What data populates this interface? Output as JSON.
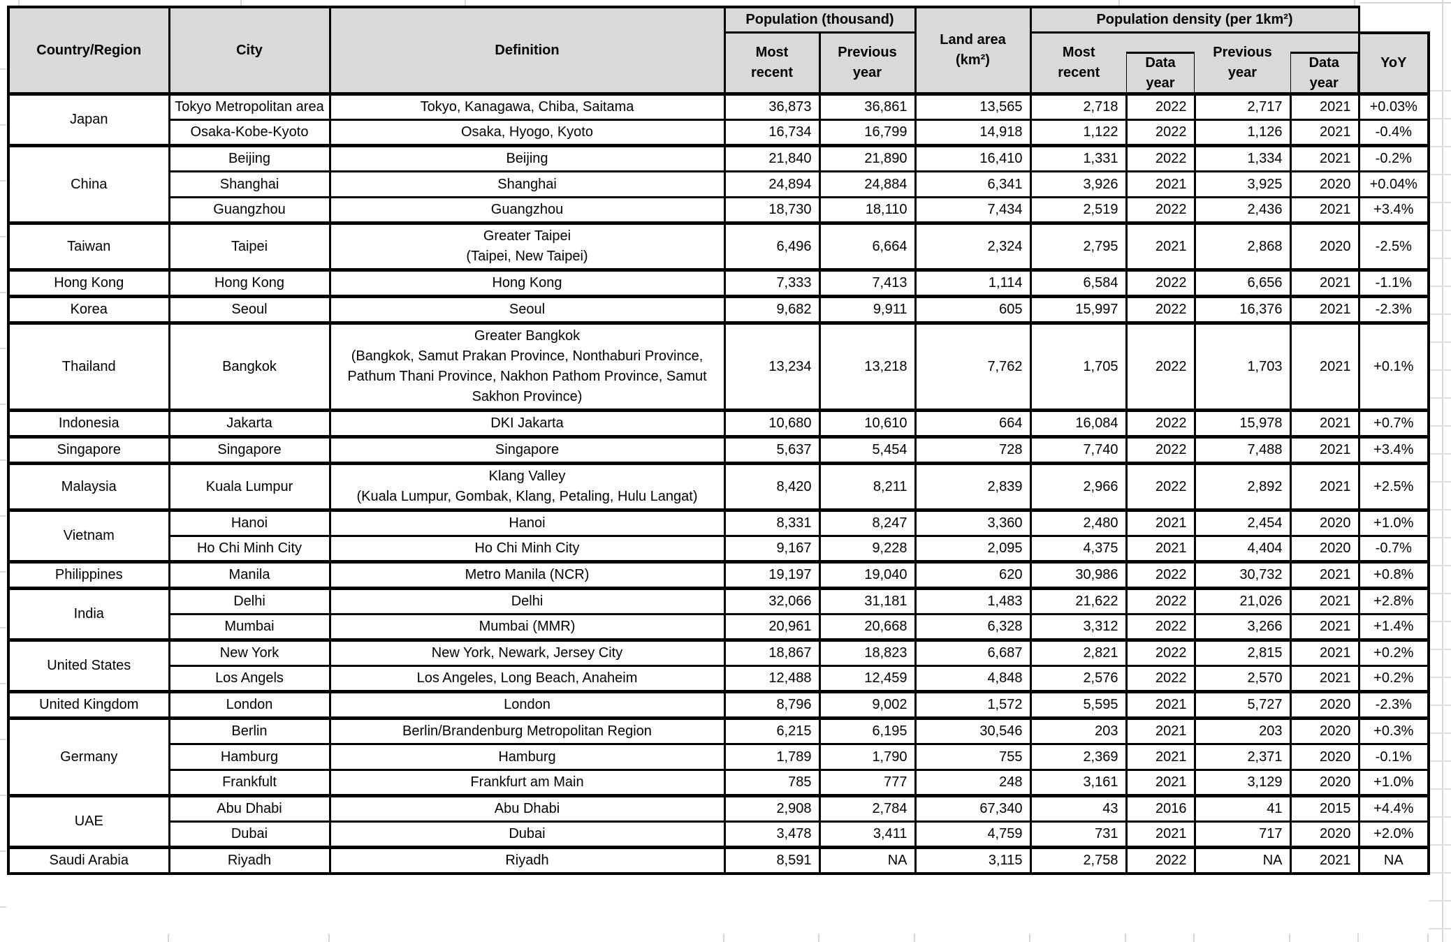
{
  "header": {
    "country": "Country/Region",
    "city": "City",
    "definition": "Definition",
    "population_group": "Population (thousand)",
    "pop_most_recent": "Most\nrecent",
    "pop_previous_year": "Previous\nyear",
    "land_area": "Land area\n(km²)",
    "density_group": "Population density (per 1km²)",
    "den_most_recent": "Most\nrecent",
    "den_data_year_1": "Data\nyear",
    "den_previous_year": "Previous\nyear",
    "den_data_year_2": "Data\nyear",
    "yoy": "YoY"
  },
  "colors": {
    "header_bg": "#d9d9d9",
    "border": "#000000",
    "gridline": "#dcdcdc",
    "cell_bg": "#ffffff"
  },
  "table": {
    "groups": [
      {
        "country": "Japan",
        "cities": [
          {
            "city": "Tokyo Metropolitan area",
            "definition": "Tokyo, Kanagawa, Chiba, Saitama",
            "pop_recent": "36,873",
            "pop_prev": "36,861",
            "land_area": "13,565",
            "den_recent": "2,718",
            "den_recent_year": "2022",
            "den_prev": "2,717",
            "den_prev_year": "2021",
            "yoy": "+0.03%"
          },
          {
            "city": "Osaka-Kobe-Kyoto",
            "definition": "Osaka, Hyogo, Kyoto",
            "pop_recent": "16,734",
            "pop_prev": "16,799",
            "land_area": "14,918",
            "den_recent": "1,122",
            "den_recent_year": "2022",
            "den_prev": "1,126",
            "den_prev_year": "2021",
            "yoy": "-0.4%"
          }
        ]
      },
      {
        "country": "China",
        "cities": [
          {
            "city": "Beijing",
            "definition": "Beijing",
            "pop_recent": "21,840",
            "pop_prev": "21,890",
            "land_area": "16,410",
            "den_recent": "1,331",
            "den_recent_year": "2022",
            "den_prev": "1,334",
            "den_prev_year": "2021",
            "yoy": "-0.2%"
          },
          {
            "city": "Shanghai",
            "definition": "Shanghai",
            "pop_recent": "24,894",
            "pop_prev": "24,884",
            "land_area": "6,341",
            "den_recent": "3,926",
            "den_recent_year": "2021",
            "den_prev": "3,925",
            "den_prev_year": "2020",
            "yoy": "+0.04%"
          },
          {
            "city": "Guangzhou",
            "definition": "Guangzhou",
            "pop_recent": "18,730",
            "pop_prev": "18,110",
            "land_area": "7,434",
            "den_recent": "2,519",
            "den_recent_year": "2022",
            "den_prev": "2,436",
            "den_prev_year": "2021",
            "yoy": "+3.4%"
          }
        ]
      },
      {
        "country": "Taiwan",
        "cities": [
          {
            "city": "Taipei",
            "definition": "Greater Taipei\n(Taipei, New Taipei)",
            "pop_recent": "6,496",
            "pop_prev": "6,664",
            "land_area": "2,324",
            "den_recent": "2,795",
            "den_recent_year": "2021",
            "den_prev": "2,868",
            "den_prev_year": "2020",
            "yoy": "-2.5%"
          }
        ]
      },
      {
        "country": "Hong Kong",
        "cities": [
          {
            "city": "Hong Kong",
            "definition": "Hong Kong",
            "pop_recent": "7,333",
            "pop_prev": "7,413",
            "land_area": "1,114",
            "den_recent": "6,584",
            "den_recent_year": "2022",
            "den_prev": "6,656",
            "den_prev_year": "2021",
            "yoy": "-1.1%"
          }
        ]
      },
      {
        "country": "Korea",
        "cities": [
          {
            "city": "Seoul",
            "definition": "Seoul",
            "pop_recent": "9,682",
            "pop_prev": "9,911",
            "land_area": "605",
            "den_recent": "15,997",
            "den_recent_year": "2022",
            "den_prev": "16,376",
            "den_prev_year": "2021",
            "yoy": "-2.3%"
          }
        ]
      },
      {
        "country": "Thailand",
        "cities": [
          {
            "city": "Bangkok",
            "definition": "Greater Bangkok\n(Bangkok, Samut Prakan Province, Nonthaburi Province, Pathum Thani Province, Nakhon Pathom Province, Samut Sakhon Province)",
            "pop_recent": "13,234",
            "pop_prev": "13,218",
            "land_area": "7,762",
            "den_recent": "1,705",
            "den_recent_year": "2022",
            "den_prev": "1,703",
            "den_prev_year": "2021",
            "yoy": "+0.1%"
          }
        ]
      },
      {
        "country": "Indonesia",
        "cities": [
          {
            "city": "Jakarta",
            "definition": "DKI Jakarta",
            "pop_recent": "10,680",
            "pop_prev": "10,610",
            "land_area": "664",
            "den_recent": "16,084",
            "den_recent_year": "2022",
            "den_prev": "15,978",
            "den_prev_year": "2021",
            "yoy": "+0.7%"
          }
        ]
      },
      {
        "country": "Singapore",
        "cities": [
          {
            "city": "Singapore",
            "definition": "Singapore",
            "pop_recent": "5,637",
            "pop_prev": "5,454",
            "land_area": "728",
            "den_recent": "7,740",
            "den_recent_year": "2022",
            "den_prev": "7,488",
            "den_prev_year": "2021",
            "yoy": "+3.4%"
          }
        ]
      },
      {
        "country": "Malaysia",
        "cities": [
          {
            "city": "Kuala Lumpur",
            "definition": "Klang Valley\n(Kuala Lumpur, Gombak, Klang, Petaling, Hulu Langat)",
            "pop_recent": "8,420",
            "pop_prev": "8,211",
            "land_area": "2,839",
            "den_recent": "2,966",
            "den_recent_year": "2022",
            "den_prev": "2,892",
            "den_prev_year": "2021",
            "yoy": "+2.5%"
          }
        ]
      },
      {
        "country": "Vietnam",
        "cities": [
          {
            "city": "Hanoi",
            "definition": "Hanoi",
            "pop_recent": "8,331",
            "pop_prev": "8,247",
            "land_area": "3,360",
            "den_recent": "2,480",
            "den_recent_year": "2021",
            "den_prev": "2,454",
            "den_prev_year": "2020",
            "yoy": "+1.0%"
          },
          {
            "city": "Ho Chi Minh City",
            "definition": "Ho Chi Minh City",
            "pop_recent": "9,167",
            "pop_prev": "9,228",
            "land_area": "2,095",
            "den_recent": "4,375",
            "den_recent_year": "2021",
            "den_prev": "4,404",
            "den_prev_year": "2020",
            "yoy": "-0.7%"
          }
        ]
      },
      {
        "country": "Philippines",
        "cities": [
          {
            "city": "Manila",
            "definition": "Metro Manila (NCR)",
            "pop_recent": "19,197",
            "pop_prev": "19,040",
            "land_area": "620",
            "den_recent": "30,986",
            "den_recent_year": "2022",
            "den_prev": "30,732",
            "den_prev_year": "2021",
            "yoy": "+0.8%"
          }
        ]
      },
      {
        "country": "India",
        "cities": [
          {
            "city": "Delhi",
            "definition": "Delhi",
            "pop_recent": "32,066",
            "pop_prev": "31,181",
            "land_area": "1,483",
            "den_recent": "21,622",
            "den_recent_year": "2022",
            "den_prev": "21,026",
            "den_prev_year": "2021",
            "yoy": "+2.8%"
          },
          {
            "city": "Mumbai",
            "definition": "Mumbai (MMR)",
            "pop_recent": "20,961",
            "pop_prev": "20,668",
            "land_area": "6,328",
            "den_recent": "3,312",
            "den_recent_year": "2022",
            "den_prev": "3,266",
            "den_prev_year": "2021",
            "yoy": "+1.4%"
          }
        ]
      },
      {
        "country": "United States",
        "cities": [
          {
            "city": "New York",
            "definition": "New York, Newark, Jersey City",
            "pop_recent": "18,867",
            "pop_prev": "18,823",
            "land_area": "6,687",
            "den_recent": "2,821",
            "den_recent_year": "2022",
            "den_prev": "2,815",
            "den_prev_year": "2021",
            "yoy": "+0.2%"
          },
          {
            "city": "Los Angels",
            "definition": "Los Angeles, Long Beach, Anaheim",
            "pop_recent": "12,488",
            "pop_prev": "12,459",
            "land_area": "4,848",
            "den_recent": "2,576",
            "den_recent_year": "2022",
            "den_prev": "2,570",
            "den_prev_year": "2021",
            "yoy": "+0.2%"
          }
        ]
      },
      {
        "country": "United Kingdom",
        "cities": [
          {
            "city": "London",
            "definition": "London",
            "pop_recent": "8,796",
            "pop_prev": "9,002",
            "land_area": "1,572",
            "den_recent": "5,595",
            "den_recent_year": "2021",
            "den_prev": "5,727",
            "den_prev_year": "2020",
            "yoy": "-2.3%"
          }
        ]
      },
      {
        "country": "Germany",
        "cities": [
          {
            "city": "Berlin",
            "definition": "Berlin/Brandenburg Metropolitan Region",
            "pop_recent": "6,215",
            "pop_prev": "6,195",
            "land_area": "30,546",
            "den_recent": "203",
            "den_recent_year": "2021",
            "den_prev": "203",
            "den_prev_year": "2020",
            "yoy": "+0.3%"
          },
          {
            "city": "Hamburg",
            "definition": "Hamburg",
            "pop_recent": "1,789",
            "pop_prev": "1,790",
            "land_area": "755",
            "den_recent": "2,369",
            "den_recent_year": "2021",
            "den_prev": "2,371",
            "den_prev_year": "2020",
            "yoy": "-0.1%"
          },
          {
            "city": "Frankfult",
            "definition": "Frankfurt am Main",
            "pop_recent": "785",
            "pop_prev": "777",
            "land_area": "248",
            "den_recent": "3,161",
            "den_recent_year": "2021",
            "den_prev": "3,129",
            "den_prev_year": "2020",
            "yoy": "+1.0%"
          }
        ]
      },
      {
        "country": "UAE",
        "cities": [
          {
            "city": "Abu Dhabi",
            "definition": "Abu Dhabi",
            "pop_recent": "2,908",
            "pop_prev": "2,784",
            "land_area": "67,340",
            "den_recent": "43",
            "den_recent_year": "2016",
            "den_prev": "41",
            "den_prev_year": "2015",
            "yoy": "+4.4%"
          },
          {
            "city": "Dubai",
            "definition": "Dubai",
            "pop_recent": "3,478",
            "pop_prev": "3,411",
            "land_area": "4,759",
            "den_recent": "731",
            "den_recent_year": "2021",
            "den_prev": "717",
            "den_prev_year": "2020",
            "yoy": "+2.0%"
          }
        ]
      },
      {
        "country": "Saudi Arabia",
        "cities": [
          {
            "city": "Riyadh",
            "definition": "Riyadh",
            "pop_recent": "8,591",
            "pop_prev": "NA",
            "land_area": "3,115",
            "den_recent": "2,758",
            "den_recent_year": "2022",
            "den_prev": "NA",
            "den_prev_year": "2021",
            "yoy": "NA"
          }
        ]
      }
    ]
  }
}
